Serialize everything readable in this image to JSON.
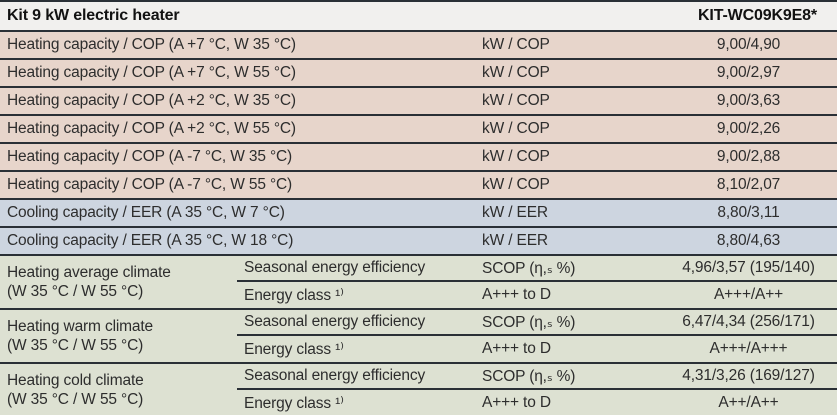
{
  "header": {
    "title": "Kit 9 kW electric heater",
    "model": "KIT-WC09K9E8*"
  },
  "colors": {
    "heating_row_bg": "#e7d5cb",
    "cooling_row_bg": "#cdd5e0",
    "climate_row_bg": "#dde1d2",
    "header_bg": "#f1f0ee",
    "divider": "#2a3036",
    "text": "#2d2d2d"
  },
  "spec_rows": [
    {
      "label": "Heating capacity / COP (A +7 °C, W 35 °C)",
      "unit": "kW / COP",
      "value": "9,00/4,90"
    },
    {
      "label": "Heating capacity / COP (A +7 °C, W 55 °C)",
      "unit": "kW / COP",
      "value": "9,00/2,97"
    },
    {
      "label": "Heating capacity / COP (A +2 °C, W 35 °C)",
      "unit": "kW / COP",
      "value": "9,00/3,63"
    },
    {
      "label": "Heating capacity / COP (A +2 °C, W 55 °C)",
      "unit": "kW / COP",
      "value": "9,00/2,26"
    },
    {
      "label": "Heating capacity / COP (A -7 °C, W 35 °C)",
      "unit": "kW / COP",
      "value": "9,00/2,88"
    },
    {
      "label": "Heating capacity / COP (A -7 °C, W 55 °C)",
      "unit": "kW / COP",
      "value": "8,10/2,07"
    },
    {
      "label": "Cooling capacity / EER (A 35 °C, W 7 °C)",
      "unit": "kW / EER",
      "value": "8,80/3,11"
    },
    {
      "label": "Cooling capacity / EER (A 35 °C, W 18 °C)",
      "unit": "kW / EER",
      "value": "8,80/4,63"
    }
  ],
  "climate_groups": [
    {
      "label_line1": "Heating average climate",
      "label_line2": "(W 35 °C / W 55 °C)",
      "rows": [
        {
          "metric": "Seasonal energy efficiency",
          "unit": "SCOP (η,ₛ %)",
          "value": "4,96/3,57 (195/140)"
        },
        {
          "metric": "Energy class ¹⁾",
          "unit": "A+++ to D",
          "value": "A+++/A++"
        }
      ]
    },
    {
      "label_line1": "Heating warm climate",
      "label_line2": "(W 35 °C / W 55 °C)",
      "rows": [
        {
          "metric": "Seasonal energy efficiency",
          "unit": "SCOP (η,ₛ %)",
          "value": "6,47/4,34 (256/171)"
        },
        {
          "metric": "Energy class ¹⁾",
          "unit": "A+++ to D",
          "value": "A+++/A+++"
        }
      ]
    },
    {
      "label_line1": "Heating cold climate",
      "label_line2": "(W 35 °C / W 55 °C)",
      "rows": [
        {
          "metric": "Seasonal energy efficiency",
          "unit": "SCOP (η,ₛ %)",
          "value": "4,31/3,26 (169/127)"
        },
        {
          "metric": "Energy class ¹⁾",
          "unit": "A+++ to D",
          "value": "A++/A++"
        }
      ]
    }
  ]
}
